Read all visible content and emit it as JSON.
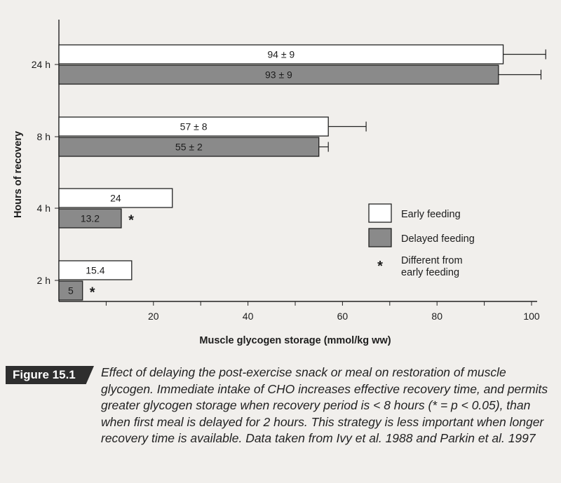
{
  "chart_data": {
    "type": "bar",
    "orientation": "horizontal",
    "categories": [
      "24 h",
      "8 h",
      "4 h",
      "2 h"
    ],
    "series": [
      {
        "name": "Early feeding",
        "color": "#ffffff",
        "values": [
          94,
          57,
          24,
          15.4
        ],
        "errors": [
          9,
          8,
          null,
          null
        ],
        "labels": [
          "94 ± 9",
          "57 ± 8",
          "24",
          "15.4"
        ],
        "significant": [
          false,
          false,
          false,
          false
        ]
      },
      {
        "name": "Delayed feeding",
        "color": "#8a8a8a",
        "values": [
          93,
          55,
          13.2,
          5
        ],
        "errors": [
          9,
          2,
          null,
          null
        ],
        "labels": [
          "93 ± 9",
          "55 ± 2",
          "13.2",
          "5"
        ],
        "significant": [
          false,
          false,
          true,
          true
        ]
      }
    ],
    "xlabel": "Muscle glycogen storage (mmol/kg ww)",
    "ylabel": "Hours of recovery",
    "xlim": [
      0,
      100
    ],
    "xticks": [
      20,
      40,
      60,
      80,
      100
    ],
    "significance_marker": "*",
    "legend": {
      "position": "lower-right",
      "items": [
        "Early feeding",
        "Delayed feeding"
      ],
      "marker_text": "Different from early feeding",
      "marker_lines": [
        "Different from",
        "early feeding"
      ]
    }
  },
  "caption": {
    "label": "Figure 15.1",
    "text": "Effect of delaying the post-exercise snack or meal on restoration of muscle glycogen. Immediate intake of CHO increases effective recovery time, and permits greater glycogen storage when recovery period is < 8 hours (* = p < 0.05), than when first meal is delayed for 2 hours. This strategy is less important when longer recovery time is available. Data taken from Ivy et al. 1988 and Parkin et al. 1997"
  }
}
